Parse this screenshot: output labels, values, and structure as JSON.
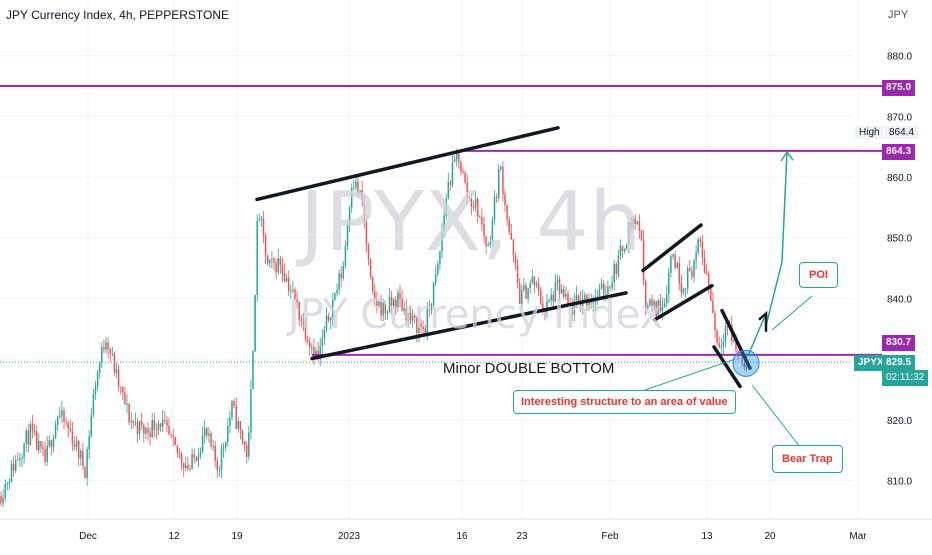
{
  "header": {
    "symbol_title": "JPY Currency Index, 4h, PEPPERSTONE",
    "currency": "JPY"
  },
  "watermark": {
    "symbol": "JPYX, 4h",
    "name": "JPY Currency Index"
  },
  "annotations": {
    "double_bottom": "Minor DOUBLE BOTTOM",
    "structure_callout": "Interesting structure to an area of value",
    "bear_trap": "Bear Trap",
    "poi": "POI"
  },
  "price_badges": {
    "line_875": "875.0",
    "line_864": "864.3",
    "line_830": "830.7",
    "ticker": "JPYX",
    "last_price": "829.5",
    "countdown": "02:11:32",
    "high_label": "High",
    "high_value": "864.4"
  },
  "colors": {
    "up": "#26a69a",
    "down": "#ef5350",
    "level_line": "#9c27b0",
    "trendline": "#131722",
    "projection": "#26a69a",
    "current_price": "#26a69a"
  },
  "chart_data": {
    "type": "candlestick",
    "title": "JPY Currency Index, 4h, PEPPERSTONE",
    "y_axis": {
      "ticks": [
        810.0,
        820.0,
        830.0,
        840.0,
        850.0,
        860.0,
        870.0,
        880.0
      ],
      "range": [
        806.5,
        888.5
      ],
      "position": "right"
    },
    "x_axis": {
      "ticks": [
        "Dec",
        "12",
        "19",
        "2023",
        "16",
        "23",
        "Feb",
        "13",
        "20",
        "Mar"
      ]
    },
    "horizontal_levels": [
      875.0,
      864.3,
      830.7
    ],
    "last_price": 829.5,
    "high": 864.4,
    "price_path": [
      [
        0,
        807.5
      ],
      [
        15,
        813
      ],
      [
        30,
        818
      ],
      [
        45,
        813
      ],
      [
        58,
        821
      ],
      [
        70,
        818
      ],
      [
        85,
        812
      ],
      [
        95,
        826
      ],
      [
        106,
        834
      ],
      [
        118,
        826
      ],
      [
        130,
        820
      ],
      [
        145,
        818
      ],
      [
        160,
        820
      ],
      [
        175,
        815
      ],
      [
        190,
        812
      ],
      [
        205,
        818
      ],
      [
        218,
        812
      ],
      [
        232,
        822
      ],
      [
        248,
        814
      ],
      [
        252,
        828
      ],
      [
        258,
        855
      ],
      [
        268,
        845
      ],
      [
        280,
        846
      ],
      [
        292,
        841
      ],
      [
        305,
        835
      ],
      [
        318,
        830
      ],
      [
        330,
        838
      ],
      [
        343,
        845
      ],
      [
        352,
        860
      ],
      [
        362,
        856
      ],
      [
        372,
        840
      ],
      [
        385,
        838
      ],
      [
        398,
        840
      ],
      [
        412,
        836
      ],
      [
        425,
        835
      ],
      [
        438,
        845
      ],
      [
        447,
        858
      ],
      [
        458,
        864
      ],
      [
        467,
        857
      ],
      [
        477,
        855
      ],
      [
        488,
        848
      ],
      [
        500,
        862
      ],
      [
        510,
        850
      ],
      [
        520,
        840
      ],
      [
        533,
        843
      ],
      [
        545,
        838
      ],
      [
        558,
        842
      ],
      [
        570,
        838
      ],
      [
        582,
        840
      ],
      [
        595,
        840
      ],
      [
        608,
        842
      ],
      [
        620,
        847
      ],
      [
        632,
        853
      ],
      [
        640,
        852
      ],
      [
        645,
        840
      ],
      [
        655,
        838
      ],
      [
        665,
        840
      ],
      [
        672,
        848
      ],
      [
        682,
        842
      ],
      [
        692,
        845
      ],
      [
        700,
        849
      ],
      [
        710,
        841
      ],
      [
        718,
        832
      ],
      [
        727,
        836
      ],
      [
        735,
        832
      ],
      [
        742,
        830
      ],
      [
        748,
        829.5
      ]
    ],
    "trendlines": [
      {
        "from": [
          257,
          856.3
        ],
        "to": [
          558,
          868.1
        ]
      },
      {
        "from": [
          312,
          830.1
        ],
        "to": [
          626,
          840.9
        ]
      },
      {
        "from": [
          643,
          844.6
        ],
        "to": [
          701,
          852.1
        ]
      },
      {
        "from": [
          655,
          836.5
        ],
        "to": [
          712,
          842.1
        ]
      },
      {
        "from": [
          714,
          832.0
        ],
        "to": [
          740,
          825.5
        ]
      },
      {
        "from": [
          722,
          838.0
        ],
        "to": [
          750,
          828.5
        ]
      }
    ],
    "projection_path": [
      [
        748,
        830.5
      ],
      [
        762,
        836.0
      ],
      [
        766,
        837.3
      ],
      [
        766,
        835.5
      ],
      [
        782,
        846.0
      ],
      [
        787,
        864.1
      ]
    ]
  }
}
